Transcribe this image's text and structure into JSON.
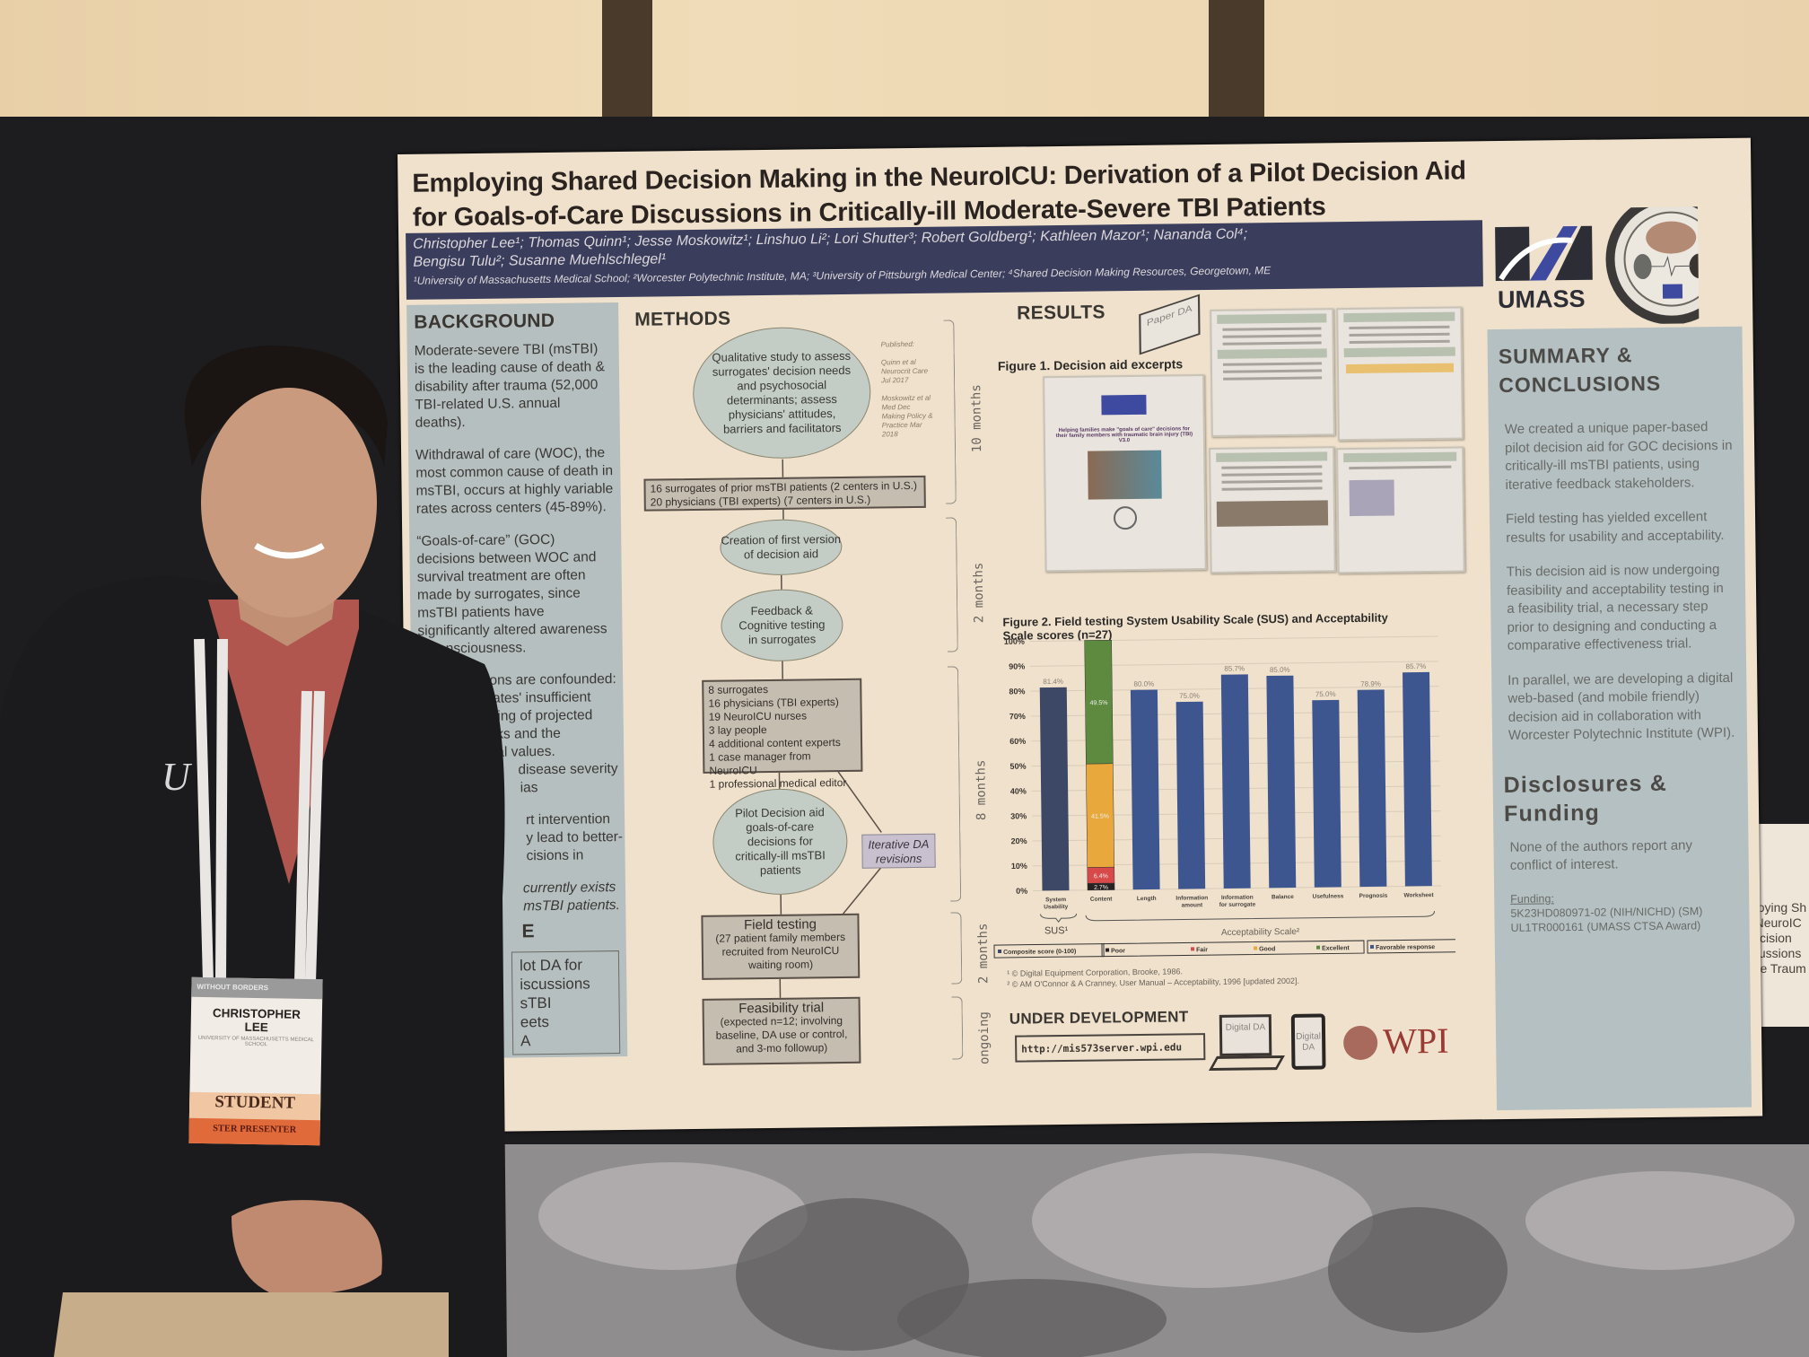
{
  "poster": {
    "title_lines": [
      "Employing Shared Decision Making in the NeuroICU: Derivation of a Pilot Decision Aid",
      "for Goals-of-Care Discussions in Critically-ill Moderate-Severe TBI Patients"
    ],
    "authors_line1": "Christopher Lee¹; Thomas Quinn¹; Jesse Moskowitz¹; Linshuo Li²; Lori Shutter³; Robert Goldberg¹; Kathleen Mazor¹; Nananda Col⁴;",
    "authors_line2": "Bengisu Tulu²; Susanne Muehlschlegel¹",
    "affiliations": "¹University of Massachusetts Medical School; ²Worcester Polytechnic Institute, MA; ³University of Pittsburgh Medical Center; ⁴Shared Decision Making Resources, Georgetown, ME",
    "logo_text": "UMASS",
    "background": {
      "heading": "BACKGROUND",
      "paragraphs": [
        "Moderate-severe TBI (msTBI) is the leading cause of death & disability after trauma (52,000 TBI-related U.S. annual deaths).",
        "Withdrawal of care (WOC), the most common cause of death in msTBI, occurs at highly variable rates across centers (45-89%).",
        "“Goals-of-care” (GOC) decisions between WOC and survival treatment are often made by surrogates, since msTBI patients have significantly altered awareness & consciousness."
      ],
      "partial_lines": [
        "GOC decisions are confounded:",
        "by surrogates' insufficient",
        "erstanding of projected",
        "risks and the",
        "rsonal values.",
        "disease severity",
        "ias"
      ],
      "partial_lines2": [
        "rt intervention",
        "y lead to better-",
        "cisions in"
      ],
      "partial_lines3": [
        "currently exists",
        "msTBI patients."
      ],
      "partial_heading": "E",
      "partial_box": [
        "lot DA for",
        "iscussions",
        "sTBI",
        "eets",
        "A"
      ]
    },
    "methods": {
      "heading": "METHODS",
      "step1": "Qualitative study to assess surrogates' decision needs and psychosocial determinants; assess physicians' attitudes, barriers and facilitators",
      "published_label": "Published:",
      "ref1": "Quinn et al Neurocrit Care Jul 2017",
      "ref2": "Moskowitz et al Med Dec Making Policy & Practice Mar 2018",
      "box1": [
        "16 surrogates of prior msTBI patients (2 centers in U.S.)",
        "20 physicians (TBI experts) (7 centers in U.S.)"
      ],
      "step2": "Creation of first version of decision aid",
      "step3": "Feedback & Cognitive testing in surrogates",
      "box2": [
        "8 surrogates",
        "16 physicians (TBI experts)",
        "19 NeuroICU nurses",
        "3 lay people",
        "4 additional content experts",
        "1 case manager from NeuroICU",
        "1 professional medical editor"
      ],
      "step4": "Pilot Decision aid goals-of-care decisions for critically-ill msTBI patients",
      "iterative": "Iterative DA revisions",
      "field_title": "Field testing",
      "field_detail": "(27 patient family members recruited from NeuroICU waiting room)",
      "feas_title": "Feasibility trial",
      "feas_detail": "(expected n=12; involving baseline, DA use or control, and 3-mo followup)",
      "timeline": [
        "10 months",
        "2 months",
        "8 months",
        "2 months",
        "ongoing"
      ]
    },
    "results": {
      "heading": "RESULTS",
      "paper_da": "Paper DA",
      "figure1_caption": "Figure 1. Decision aid excerpts",
      "cover_text": "Helping families make \"goals of care\" decisions for their family members with traumatic brain injury (TBI)",
      "cover_version": "V3.0",
      "figure2_caption": "Figure 2. Field testing System Usability Scale (SUS) and Acceptability Scale scores (n=27)",
      "sus_group": "SUS¹",
      "acc_group": "Acceptability Scale²",
      "legend": [
        "Composite score (0-100)",
        "Poor",
        "Fair",
        "Good",
        "Excellent",
        "Favorable response"
      ],
      "footnote1": "¹ © Digital Equipment Corporation, Brooke, 1986.",
      "footnote2": "² © AM O'Connor & A Cranney, User Manual – Acceptability, 1996 [updated 2002].",
      "under_dev": "UNDER DEVELOPMENT",
      "url": "http://mis573server.wpi.edu",
      "digital_da": "Digital DA",
      "wpi": "WPI"
    },
    "summary": {
      "heading": "SUMMARY & CONCLUSIONS",
      "paragraphs": [
        "We created a unique paper-based pilot decision aid for GOC decisions in critically-ill msTBI patients, using iterative feedback stakeholders.",
        "Field testing has yielded excellent results for usability and acceptability.",
        "This decision aid is now undergoing feasibility and acceptability testing in a feasibility trial, a necessary step prior to designing and conducting a comparative effectiveness trial.",
        "In parallel, we are developing a digital web-based (and mobile friendly) decision aid in collaboration with Worcester Polytechnic Institute (WPI)."
      ],
      "disc_heading": "Disclosures & Funding",
      "disc_text": "None of the authors report any conflict of interest.",
      "funding_label": "Funding:",
      "funding": [
        "5K23HD080971-02 (NIH/NICHD) (SM)",
        "UL1TR000161 (UMASS CTSA Award)"
      ]
    }
  },
  "badge": {
    "header": "WITHOUT BORDERS",
    "name_line1": "CHRISTOPHER",
    "name_line2": "LEE",
    "org": "UNIVERSITY OF MASSACHUSETTS MEDICAL SCHOOL",
    "ribbon1": "STUDENT",
    "ribbon2": "STER PRESENTER"
  },
  "neighbor_poster_lines": [
    "Employing Sh",
    "the NeuroIC",
    "Decision",
    "Discussions",
    "severe Traum"
  ],
  "chart_data": {
    "type": "bar",
    "title": "Figure 2. Field testing System Usability Scale (SUS) and Acceptability Scale scores (n=27)",
    "categories": [
      "System Usability",
      "Content",
      "Length",
      "Information amount",
      "Information for surrogate",
      "Balance",
      "Usefulness",
      "Prognosis",
      "Worksheet"
    ],
    "values": [
      81.4,
      null,
      80.0,
      75.0,
      85.7,
      85.0,
      75.0,
      78.9,
      85.7
    ],
    "value_labels": [
      "81.4%",
      "",
      "80.0%",
      "75.0%",
      "85.7%",
      "85.0%",
      "75.0%",
      "78.9%",
      "85.7%"
    ],
    "content_stack": [
      {
        "name": "Poor",
        "value": 2.7,
        "label": "2.7%",
        "color": "#2a2222"
      },
      {
        "name": "Fair",
        "value": 6.4,
        "label": "6.4%",
        "color": "#d84a4a"
      },
      {
        "name": "Good",
        "value": 41.5,
        "label": "41.5%",
        "color": "#e8a83c"
      },
      {
        "name": "Excellent",
        "value": 49.5,
        "label": "49.5%",
        "color": "#5d8a3e"
      }
    ],
    "ylim": [
      0,
      100
    ],
    "yticks": [
      "0%",
      "10%",
      "20%",
      "30%",
      "40%",
      "50%",
      "60%",
      "70%",
      "80%",
      "90%",
      "100%"
    ],
    "grid": true,
    "colors": {
      "sus": "#3c4866",
      "acceptability": "#3e5690"
    },
    "legend_position": "bottom"
  }
}
